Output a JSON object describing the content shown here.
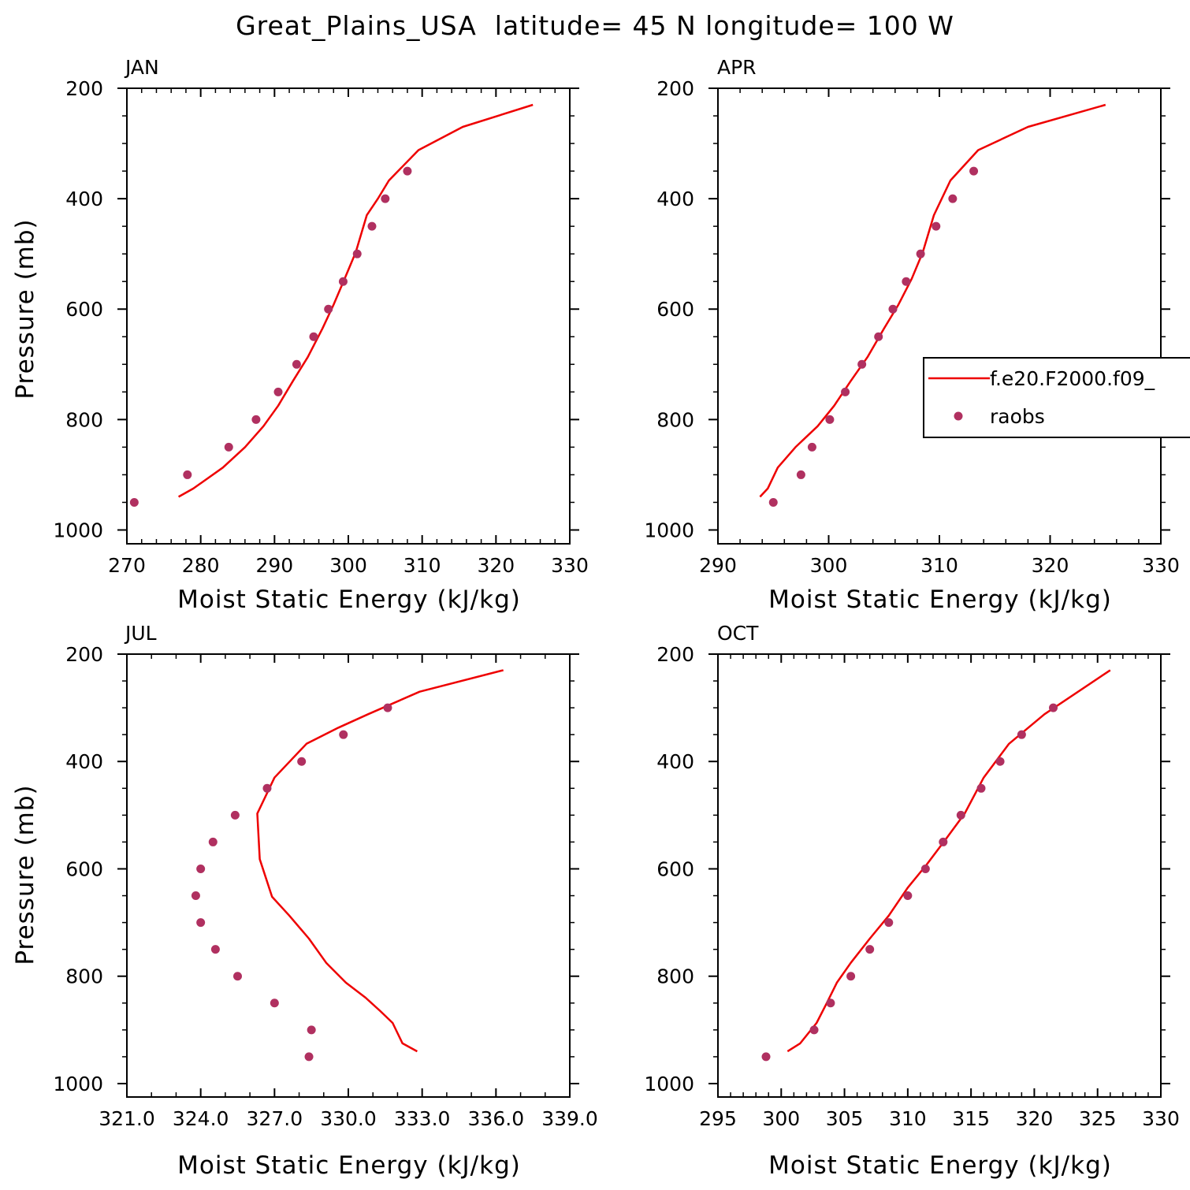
{
  "title": "Great_Plains_USA  latitude= 45 N longitude= 100 W",
  "legend": {
    "model_label": "f.e20.F2000.f09_",
    "obs_label": "raobs"
  },
  "colors": {
    "model": "#ee0000",
    "obs": "#b03060",
    "axis": "#000000"
  },
  "chart_data": [
    {
      "type": "line",
      "title": "JAN",
      "xlabel": "Moist Static Energy (kJ/kg)",
      "ylabel": "Pressure (mb)",
      "xlim": [
        270,
        330
      ],
      "ylim": [
        1025,
        200
      ],
      "x_ticks": [
        "270",
        "280",
        "290",
        "300",
        "310",
        "320",
        "330"
      ],
      "y_ticks": [
        "200",
        "400",
        "600",
        "800",
        "1000"
      ],
      "series": [
        {
          "kind": "line",
          "x": [
            277.0,
            279.0,
            283.0,
            286.0,
            288.5,
            290.5,
            292.5,
            294.5,
            296.5,
            298.0,
            299.5,
            301.0,
            302.5,
            304.0,
            305.5,
            309.5,
            315.5,
            325.0
          ],
          "y": [
            940,
            925,
            887,
            850,
            812,
            775,
            730,
            687,
            635,
            592,
            545,
            497,
            430,
            400,
            367,
            312,
            270,
            230
          ]
        },
        {
          "kind": "scatter",
          "x": [
            271.0,
            278.2,
            283.8,
            287.5,
            290.5,
            293.0,
            295.3,
            297.3,
            299.3,
            301.2,
            303.2,
            305.0,
            308.0
          ],
          "y": [
            950,
            900,
            850,
            800,
            750,
            700,
            650,
            600,
            550,
            500,
            450,
            400,
            350
          ]
        }
      ]
    },
    {
      "type": "line",
      "title": "APR",
      "xlabel": "Moist Static Energy (kJ/kg)",
      "ylabel": "",
      "xlim": [
        290,
        330
      ],
      "ylim": [
        1025,
        200
      ],
      "x_ticks": [
        "290",
        "300",
        "310",
        "320",
        "330"
      ],
      "y_ticks": [
        "200",
        "400",
        "600",
        "800",
        "1000"
      ],
      "series": [
        {
          "kind": "line",
          "x": [
            293.8,
            294.5,
            295.4,
            297.0,
            299.0,
            300.5,
            302.0,
            303.5,
            305.0,
            306.3,
            307.5,
            308.5,
            309.5,
            311.0,
            313.5,
            318.0,
            325.0
          ],
          "y": [
            940,
            925,
            887,
            850,
            812,
            775,
            730,
            687,
            635,
            592,
            545,
            497,
            430,
            367,
            312,
            270,
            230
          ]
        },
        {
          "kind": "scatter",
          "x": [
            295.0,
            297.5,
            298.5,
            300.1,
            301.5,
            303.0,
            304.5,
            305.8,
            307.0,
            308.3,
            309.7,
            311.2,
            313.1
          ],
          "y": [
            950,
            900,
            850,
            800,
            750,
            700,
            650,
            600,
            550,
            500,
            450,
            400,
            350
          ]
        }
      ]
    },
    {
      "type": "line",
      "title": "JUL",
      "xlabel": "Moist Static Energy (kJ/kg)",
      "ylabel": "Pressure (mb)",
      "xlim": [
        321.0,
        339.0
      ],
      "ylim": [
        1025,
        200
      ],
      "x_ticks": [
        "321.0",
        "324.0",
        "327.0",
        "330.0",
        "333.0",
        "336.0",
        "339.0"
      ],
      "y_ticks": [
        "200",
        "400",
        "600",
        "800",
        "1000"
      ],
      "series": [
        {
          "kind": "line",
          "x": [
            332.8,
            332.2,
            331.8,
            331.3,
            330.7,
            329.9,
            329.1,
            328.4,
            327.6,
            326.9,
            326.4,
            326.3,
            327.0,
            328.3,
            329.6,
            330.8,
            332.9,
            336.3
          ],
          "y": [
            940,
            925,
            887,
            865,
            840,
            812,
            775,
            730,
            687,
            652,
            582,
            497,
            430,
            367,
            337,
            312,
            270,
            230
          ]
        },
        {
          "kind": "scatter",
          "x": [
            328.4,
            328.5,
            327.0,
            325.5,
            324.6,
            324.0,
            323.8,
            324.0,
            324.5,
            325.4,
            326.7,
            328.1,
            329.8,
            331.6
          ],
          "y": [
            950,
            900,
            850,
            800,
            750,
            700,
            650,
            600,
            550,
            500,
            450,
            400,
            350,
            300
          ]
        }
      ]
    },
    {
      "type": "line",
      "title": "OCT",
      "xlabel": "Moist Static Energy (kJ/kg)",
      "ylabel": "",
      "xlim": [
        295,
        330
      ],
      "ylim": [
        1025,
        200
      ],
      "x_ticks": [
        "295",
        "300",
        "305",
        "310",
        "315",
        "320",
        "325",
        "330"
      ],
      "y_ticks": [
        "200",
        "400",
        "600",
        "800",
        "1000"
      ],
      "series": [
        {
          "kind": "line",
          "x": [
            300.5,
            301.5,
            302.8,
            303.6,
            304.4,
            305.5,
            307.0,
            308.5,
            310.0,
            311.5,
            313.0,
            314.5,
            316.0,
            318.0,
            320.8,
            326.0
          ],
          "y": [
            940,
            925,
            887,
            850,
            812,
            775,
            730,
            687,
            635,
            592,
            545,
            497,
            430,
            367,
            312,
            230
          ]
        },
        {
          "kind": "scatter",
          "x": [
            298.8,
            302.6,
            303.9,
            305.5,
            307.0,
            308.5,
            310.0,
            311.4,
            312.8,
            314.2,
            315.8,
            317.3,
            319.0,
            321.5
          ],
          "y": [
            950,
            900,
            850,
            800,
            750,
            700,
            650,
            600,
            550,
            500,
            450,
            400,
            350,
            300
          ]
        }
      ]
    }
  ]
}
